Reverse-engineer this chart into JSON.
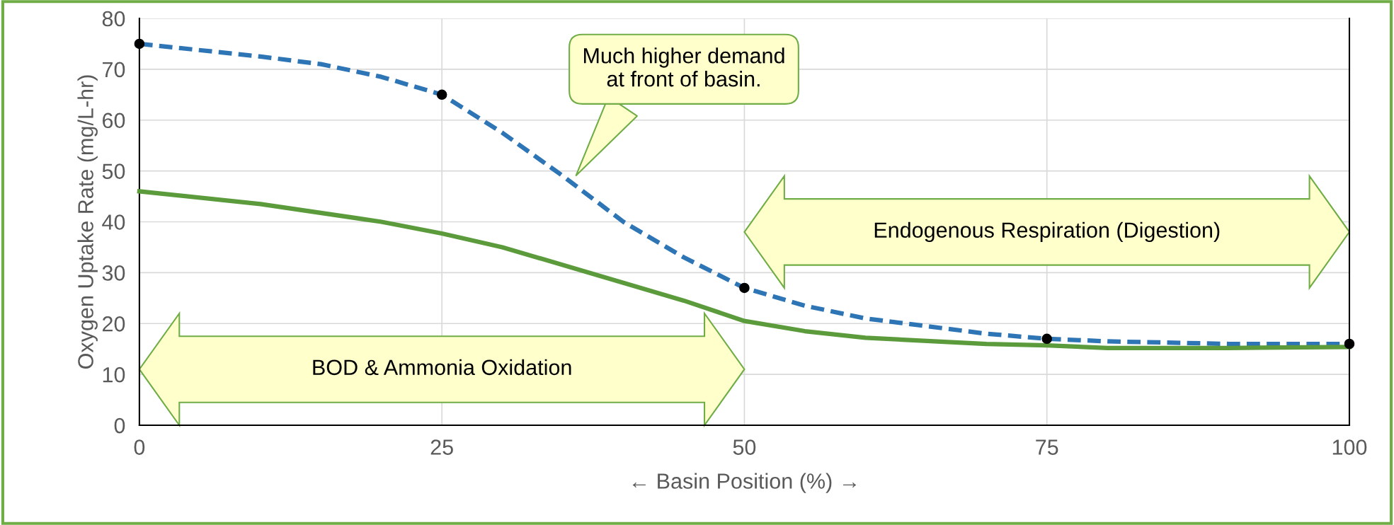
{
  "chart_data": {
    "type": "line",
    "xlabel": "← Basin Position (%) →",
    "ylabel": "Oxygen Uptake Rate (mg/L-hr)",
    "xlim": [
      0,
      100
    ],
    "xticks": [
      0,
      25,
      50,
      75,
      100
    ],
    "ylim": [
      0,
      80
    ],
    "yticks": [
      0,
      10,
      20,
      30,
      40,
      50,
      60,
      70,
      80
    ],
    "grid": true,
    "series": [
      {
        "color": "#2e75b6",
        "line_style": "dashed",
        "marker": "none",
        "x": [
          0,
          10,
          15,
          20,
          25,
          30,
          35,
          40,
          45,
          50,
          55,
          60,
          65,
          70,
          75,
          80,
          90,
          100
        ],
        "values": [
          75,
          72.5,
          71,
          68.5,
          65,
          57.5,
          49,
          40,
          33,
          27,
          23.5,
          21,
          19.5,
          18,
          17,
          16.5,
          16,
          16
        ]
      },
      {
        "type": "scatter",
        "color": "#000000",
        "marker": "circle",
        "x": [
          0,
          25,
          50,
          75,
          100
        ],
        "values": [
          75,
          65,
          27,
          17,
          16
        ]
      },
      {
        "color": "#5b9b3c",
        "line_style": "solid",
        "marker": "none",
        "x": [
          0,
          10,
          20,
          25,
          30,
          40,
          45,
          50,
          55,
          60,
          70,
          75,
          80,
          90,
          100
        ],
        "values": [
          46,
          43.5,
          40,
          37.7,
          35,
          28,
          24.5,
          20.5,
          18.5,
          17.2,
          16,
          15.7,
          15.2,
          15.2,
          15.4
        ]
      }
    ],
    "annotations": [
      "Much higher demand\nat front of basin.",
      "BOD & Ammonia Oxidation",
      "Endogenous Respiration (Digestion)"
    ]
  }
}
